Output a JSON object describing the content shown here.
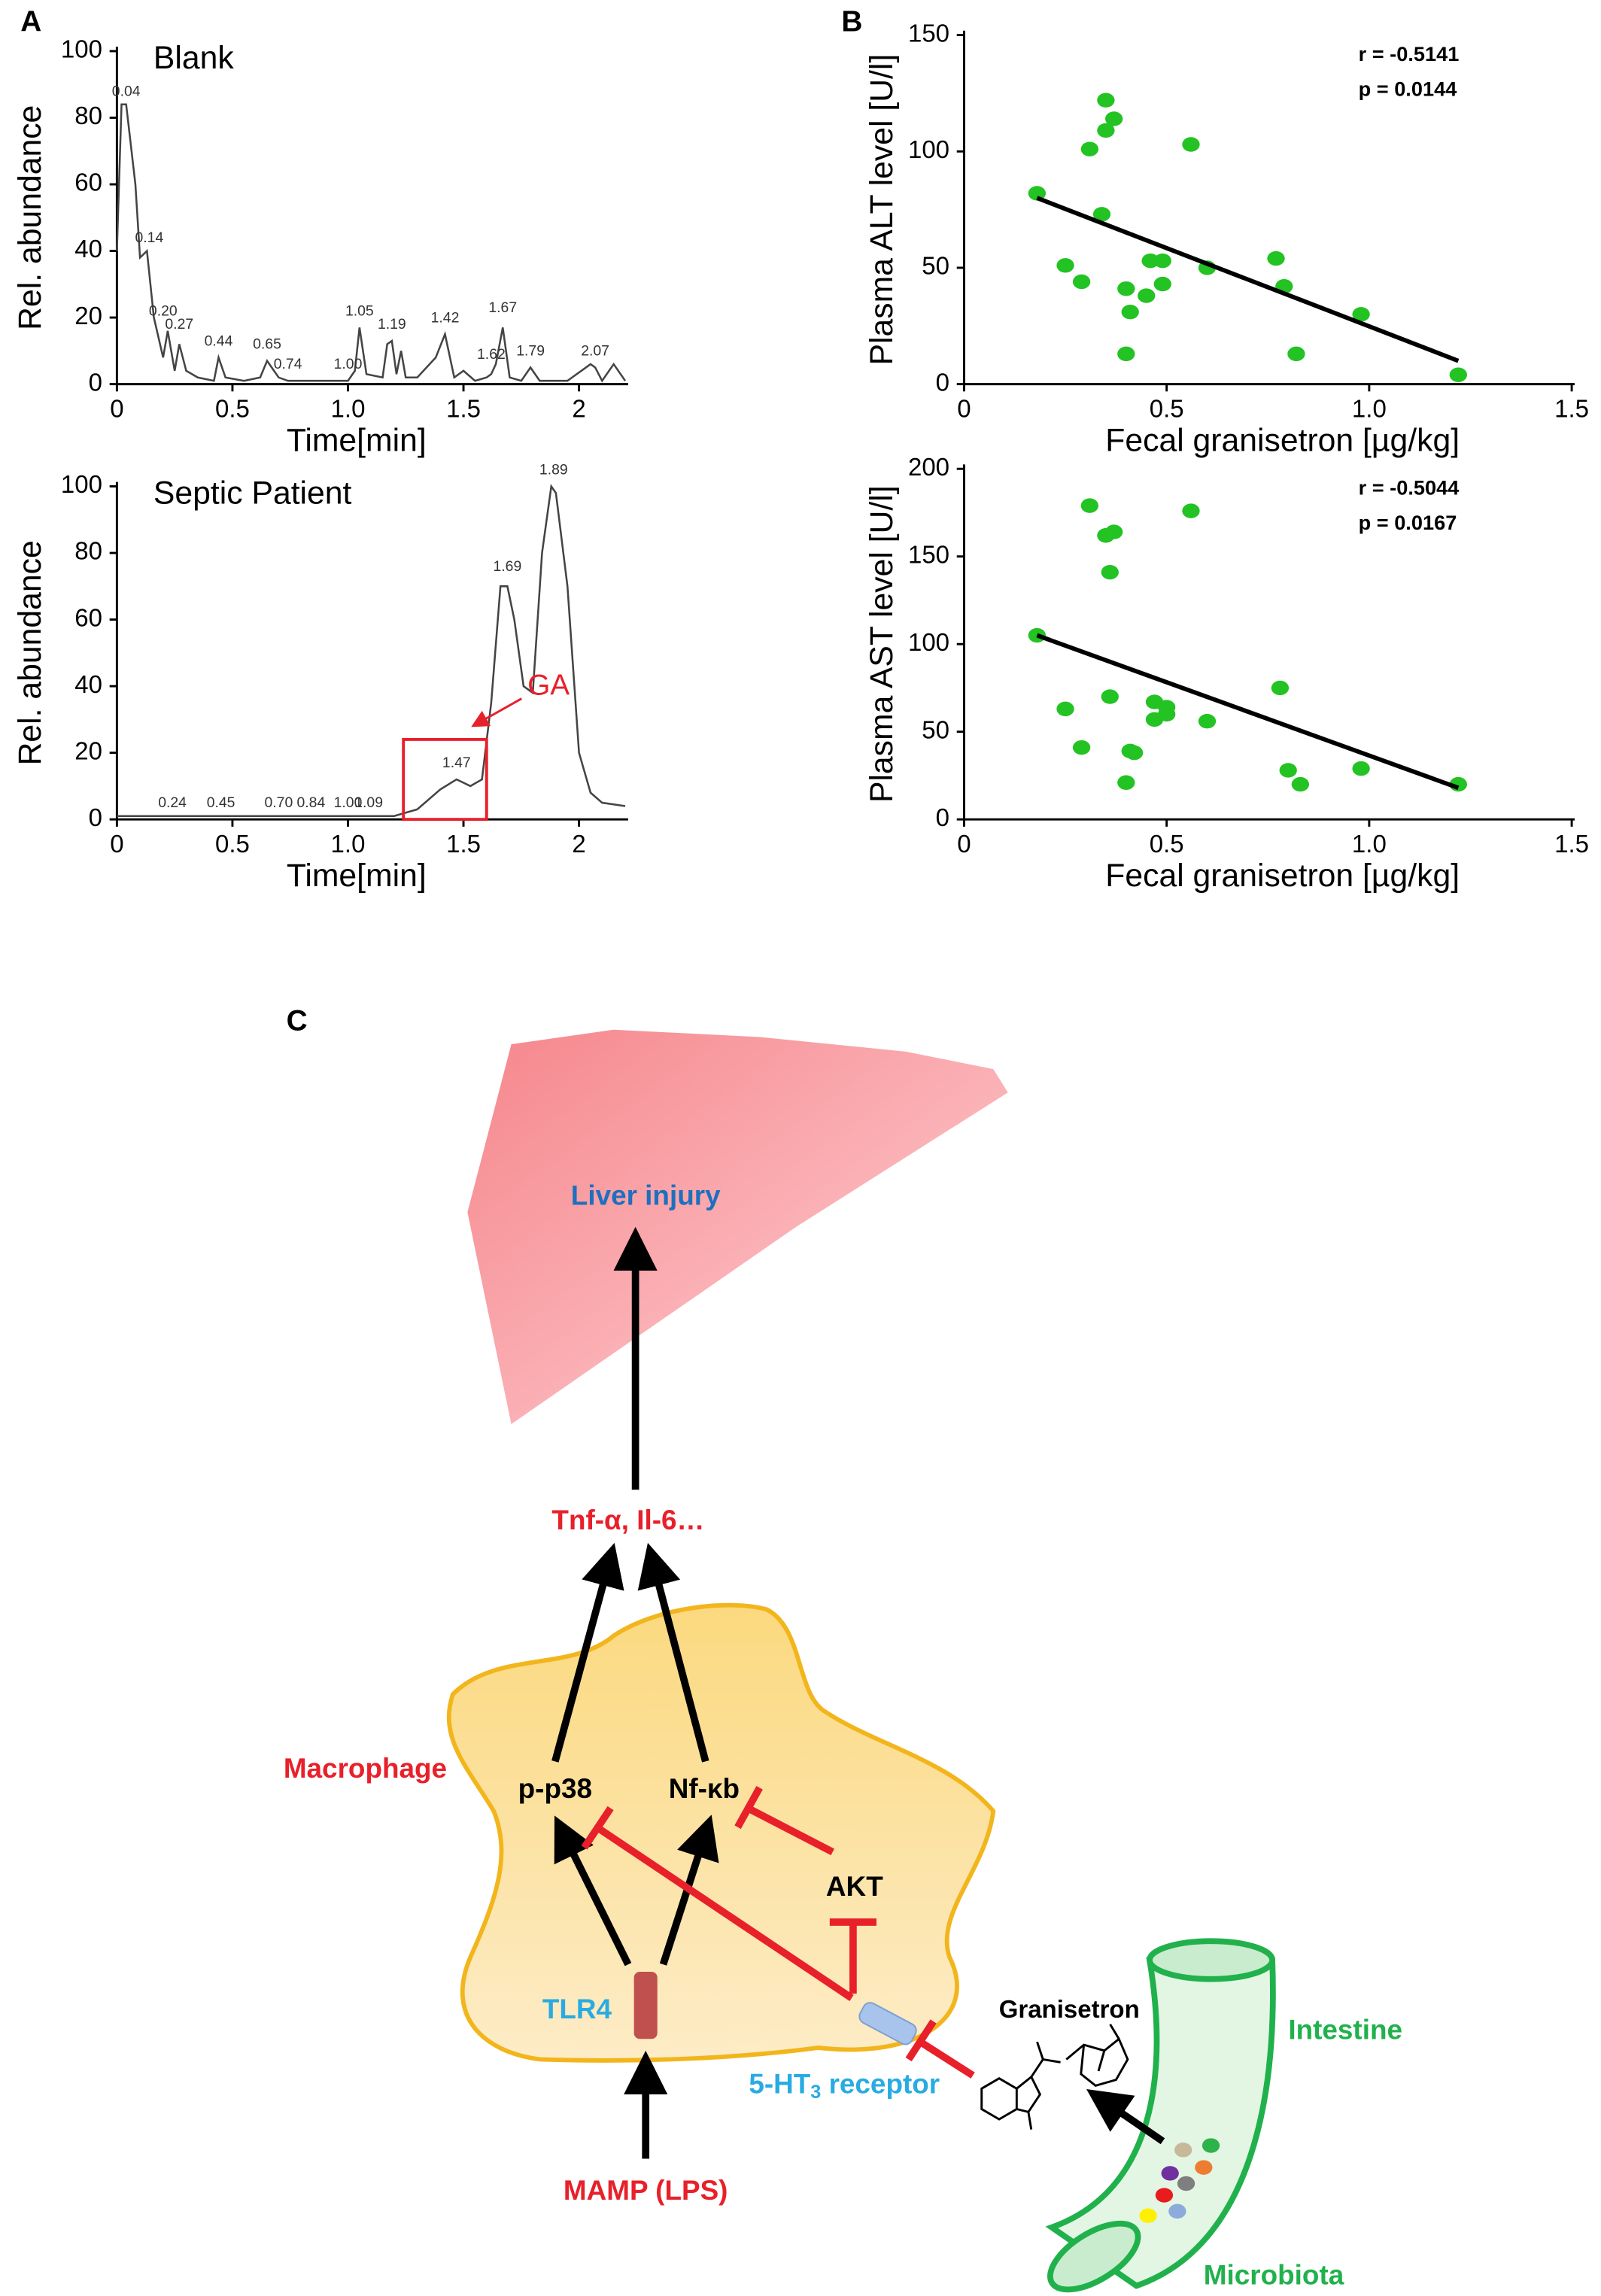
{
  "chart_data": [
    {
      "type": "line",
      "panel": "A",
      "label": "Blank",
      "xlabel": "Time[min]",
      "ylabel": "Rel. abundance",
      "color": "#444444",
      "xlim": [
        0,
        2.2
      ],
      "xticks": [
        0,
        0.5,
        {
          "value": 1,
          "label": "1.0"
        },
        1.5,
        2
      ],
      "ylim": [
        0,
        100
      ],
      "yticks": [
        0,
        20,
        40,
        60,
        80,
        100
      ],
      "x": [
        0,
        0.02,
        0.04,
        0.08,
        0.1,
        0.13,
        0.16,
        0.2,
        0.22,
        0.25,
        0.27,
        0.3,
        0.35,
        0.42,
        0.44,
        0.47,
        0.55,
        0.62,
        0.65,
        0.7,
        0.74,
        0.8,
        1.0,
        1.03,
        1.05,
        1.08,
        1.15,
        1.17,
        1.19,
        1.21,
        1.23,
        1.25,
        1.3,
        1.38,
        1.42,
        1.46,
        1.5,
        1.55,
        1.6,
        1.62,
        1.64,
        1.67,
        1.7,
        1.75,
        1.79,
        1.83,
        1.95,
        2.05,
        2.07,
        2.1,
        2.15,
        2.2
      ],
      "values": [
        40,
        84,
        84,
        60,
        38,
        40,
        20,
        8,
        16,
        4,
        12,
        4,
        2,
        1,
        8,
        2,
        1,
        2,
        7,
        2,
        1,
        1,
        1,
        4,
        17,
        3,
        2,
        12,
        13,
        3,
        10,
        2,
        2,
        8,
        15,
        2,
        4,
        1,
        2,
        3,
        6,
        17,
        2,
        1,
        5,
        1,
        1,
        6,
        5,
        1,
        6,
        1
      ],
      "peak_labels": [
        {
          "x": 0.04,
          "y": 86,
          "label": "0.04"
        },
        {
          "x": 0.14,
          "y": 42,
          "label": "0.14"
        },
        {
          "x": 0.2,
          "y": 20,
          "label": "0.20"
        },
        {
          "x": 0.27,
          "y": 16,
          "label": "0.27"
        },
        {
          "x": 0.44,
          "y": 11,
          "label": "0.44"
        },
        {
          "x": 0.65,
          "y": 10,
          "label": "0.65"
        },
        {
          "x": 0.74,
          "y": 4,
          "label": "0.74"
        },
        {
          "x": 1.0,
          "y": 4,
          "label": "1.00"
        },
        {
          "x": 1.05,
          "y": 20,
          "label": "1.05"
        },
        {
          "x": 1.19,
          "y": 16,
          "label": "1.19"
        },
        {
          "x": 1.42,
          "y": 18,
          "label": "1.42"
        },
        {
          "x": 1.62,
          "y": 7,
          "label": "1.62"
        },
        {
          "x": 1.67,
          "y": 21,
          "label": "1.67"
        },
        {
          "x": 1.79,
          "y": 8,
          "label": "1.79"
        },
        {
          "x": 2.07,
          "y": 8,
          "label": "2.07"
        }
      ]
    },
    {
      "type": "line",
      "label": "Septic Patient",
      "xlabel": "Time[min]",
      "ylabel": "Rel. abundance",
      "color": "#444444",
      "xlim": [
        0,
        2.2
      ],
      "xticks": [
        0,
        0.5,
        {
          "value": 1,
          "label": "1.0"
        },
        1.5,
        2
      ],
      "ylim": [
        0,
        100
      ],
      "yticks": [
        0,
        20,
        40,
        60,
        80,
        100
      ],
      "x": [
        0,
        0.24,
        0.45,
        0.7,
        0.84,
        1.0,
        1.09,
        1.2,
        1.3,
        1.4,
        1.47,
        1.53,
        1.58,
        1.62,
        1.66,
        1.69,
        1.72,
        1.76,
        1.8,
        1.84,
        1.88,
        1.9,
        1.95,
        2.0,
        2.05,
        2.1,
        2.2
      ],
      "values": [
        1,
        1,
        1,
        1,
        1,
        1,
        1,
        1,
        3,
        9,
        12,
        10,
        12,
        35,
        70,
        70,
        60,
        40,
        38,
        80,
        100,
        98,
        70,
        20,
        8,
        5,
        4
      ],
      "peak_labels": [
        {
          "x": 0.24,
          "y": 3,
          "label": "0.24"
        },
        {
          "x": 0.45,
          "y": 3,
          "label": "0.45"
        },
        {
          "x": 0.7,
          "y": 3,
          "label": "0.70"
        },
        {
          "x": 0.84,
          "y": 3,
          "label": "0.84"
        },
        {
          "x": 1.0,
          "y": 3,
          "label": "1.00"
        },
        {
          "x": 1.09,
          "y": 3,
          "label": "1.09"
        },
        {
          "x": 1.47,
          "y": 15,
          "label": "1.47"
        },
        {
          "x": 1.69,
          "y": 74,
          "label": "1.69"
        },
        {
          "x": 1.89,
          "y": 103,
          "label": "1.89"
        }
      ],
      "highlight": {
        "xlim": [
          1.24,
          1.6
        ],
        "ylim": [
          0,
          24
        ],
        "color": "#e8202a",
        "text": "GA"
      }
    },
    {
      "type": "scatter",
      "panel": "B",
      "xlabel": "Fecal granisetron [µg/kg]",
      "ylabel": "Plasma ALT level [U/l]",
      "color": "#22c322",
      "stats": [
        "r = -0.5141",
        "p = 0.0144"
      ],
      "xlim": [
        0,
        1.5
      ],
      "xticks": [
        0,
        0.5,
        {
          "value": 1,
          "label": "1.0"
        },
        1.5
      ],
      "ylim": [
        0,
        150
      ],
      "yticks": [
        0,
        50,
        100,
        150
      ],
      "x": [
        0.18,
        0.25,
        0.29,
        0.31,
        0.35,
        0.34,
        0.35,
        0.37,
        0.4,
        0.4,
        0.41,
        0.45,
        0.46,
        0.49,
        0.49,
        0.6,
        0.56,
        0.77,
        0.79,
        0.82,
        0.98,
        1.22
      ],
      "values": [
        82,
        51,
        44,
        101,
        122,
        73,
        109,
        114,
        41,
        13,
        31,
        38,
        53,
        53,
        43,
        50,
        103,
        54,
        42,
        13,
        30,
        4
      ],
      "fit": {
        "x": [
          0.18,
          1.22
        ],
        "values": [
          80,
          10
        ]
      }
    },
    {
      "type": "scatter",
      "xlabel": "Fecal granisetron [µg/kg]",
      "ylabel": "Plasma AST level [U/l]",
      "color": "#22c322",
      "stats": [
        "r = -0.5044",
        "p = 0.0167"
      ],
      "xlim": [
        0,
        1.5
      ],
      "xticks": [
        0,
        0.5,
        {
          "value": 1,
          "label": "1.0"
        },
        1.5
      ],
      "ylim": [
        0,
        200
      ],
      "yticks": [
        0,
        50,
        100,
        150,
        200
      ],
      "x": [
        0.18,
        0.25,
        0.29,
        0.31,
        0.35,
        0.36,
        0.37,
        0.4,
        0.42,
        0.41,
        0.36,
        0.47,
        0.47,
        0.5,
        0.5,
        0.6,
        0.56,
        0.78,
        0.8,
        0.83,
        0.98,
        1.22
      ],
      "values": [
        105,
        63,
        41,
        179,
        162,
        141,
        164,
        21,
        38,
        39,
        70,
        67,
        57,
        64,
        60,
        56,
        176,
        75,
        28,
        20,
        29,
        20
      ],
      "fit": {
        "x": [
          0.18,
          1.22
        ],
        "values": [
          105,
          18
        ]
      }
    }
  ],
  "diagram": {
    "panel": "C",
    "liver": "Liver injury",
    "cytokines": "Tnf-α, Il-6…",
    "macrophage": "Macrophage",
    "p38": "p-p38",
    "nfkb": "Nf-κb",
    "akt": "AKT",
    "tlr4": "TLR4",
    "receptor_prefix": "5-HT",
    "receptor_sub": "3",
    "receptor_suffix": " receptor",
    "mamp": "MAMP (LPS)",
    "granisetron": "Granisetron",
    "intestine": "Intestine",
    "microbiota": "Microbiota"
  }
}
